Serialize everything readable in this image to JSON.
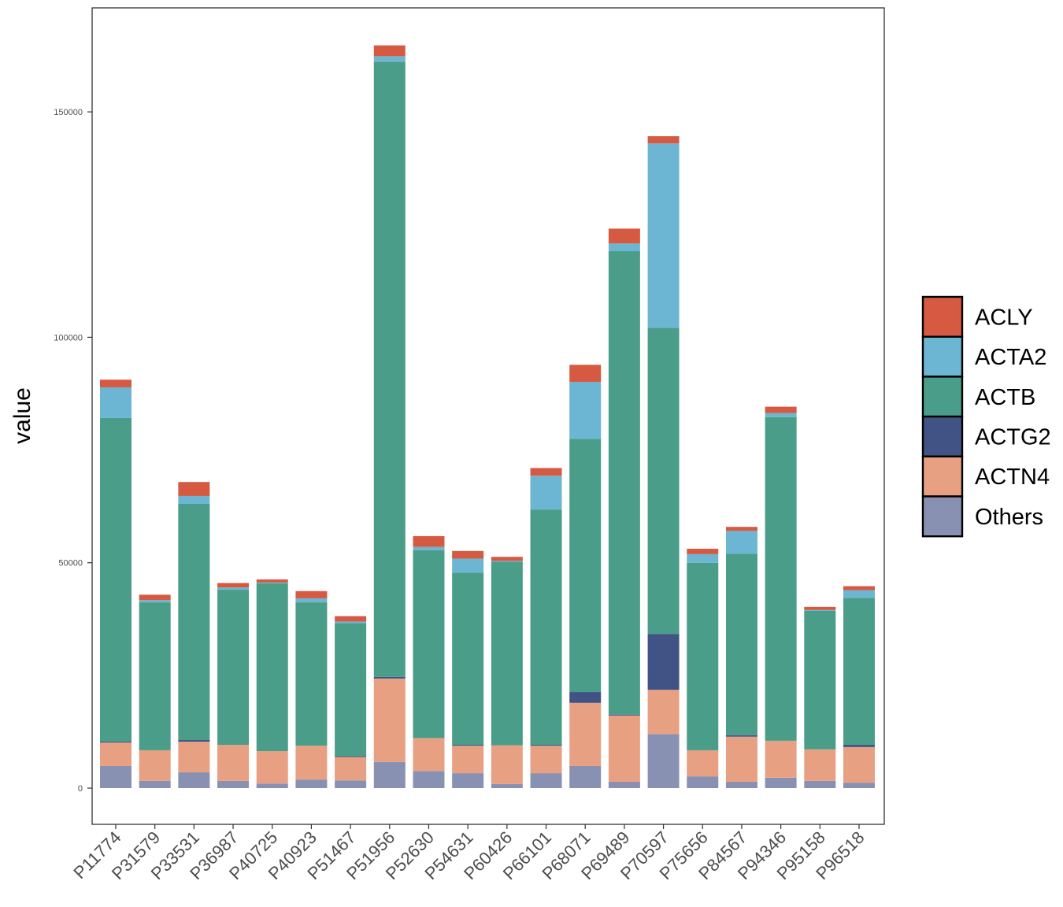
{
  "chart_data": {
    "type": "bar",
    "stacked": true,
    "title": "",
    "xlabel": "",
    "ylabel": "value",
    "ylim": [
      -7000,
      173000
    ],
    "yticks": [
      0,
      50000,
      100000,
      150000
    ],
    "ytick_labels": [
      "0",
      "50000",
      "100000",
      "150000"
    ],
    "grid": false,
    "legend_position": "right",
    "categories": [
      "P11774",
      "P31579",
      "P33531",
      "P36987",
      "P40725",
      "P40923",
      "P51467",
      "P51956",
      "P52630",
      "P54631",
      "P60426",
      "P66101",
      "P68071",
      "P69489",
      "P70597",
      "P75656",
      "P84567",
      "P94346",
      "P95158",
      "P96518"
    ],
    "series": [
      {
        "name": "Others",
        "color": "#8891b2",
        "values": [
          4900,
          1600,
          3500,
          1600,
          1000,
          1900,
          1700,
          5800,
          3800,
          3300,
          900,
          3300,
          4900,
          1400,
          12000,
          2600,
          1400,
          2300,
          1600,
          1200
        ]
      },
      {
        "name": "ACTN4",
        "color": "#e8a083",
        "values": [
          5200,
          6800,
          6800,
          8000,
          7200,
          7500,
          5200,
          18500,
          7300,
          6100,
          8600,
          6100,
          14000,
          14700,
          9800,
          5800,
          10000,
          8200,
          7000,
          7900
        ]
      },
      {
        "name": "ACTG2",
        "color": "#415384",
        "values": [
          200,
          0,
          350,
          0,
          0,
          0,
          200,
          350,
          0,
          200,
          0,
          200,
          2400,
          200,
          12400,
          0,
          350,
          0,
          0,
          500
        ]
      },
      {
        "name": "ACTB",
        "color": "#4a9d88",
        "values": [
          71800,
          32800,
          52400,
          34400,
          37200,
          31800,
          29500,
          136500,
          41700,
          38200,
          40700,
          52200,
          56200,
          102800,
          67900,
          41600,
          40200,
          71800,
          30700,
          32600
        ]
      },
      {
        "name": "ACTA2",
        "color": "#6cb6d3",
        "values": [
          6800,
          500,
          1750,
          500,
          200,
          900,
          350,
          1200,
          700,
          3100,
          200,
          7500,
          12600,
          1700,
          40900,
          1900,
          5100,
          900,
          200,
          1700
        ]
      },
      {
        "name": "ACLY",
        "color": "#d65a42",
        "values": [
          1700,
          1200,
          3100,
          1000,
          700,
          1600,
          1200,
          2400,
          2400,
          1700,
          900,
          1700,
          3800,
          3300,
          1600,
          1200,
          900,
          1400,
          700,
          900
        ]
      }
    ],
    "legend": [
      "ACLY",
      "ACTA2",
      "ACTB",
      "ACTG2",
      "ACTN4",
      "Others"
    ]
  }
}
